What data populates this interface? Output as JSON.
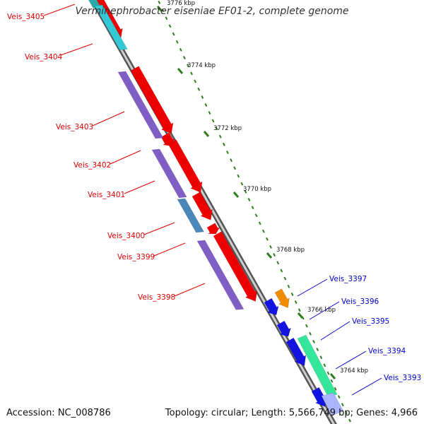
{
  "title": "Verminephrobacter eiseniae EF01-2, complete genome",
  "footer": {
    "accession": "Accession: NC_008786",
    "summary": "Topology: circular; Length: 5,566,749 bp; Genes: 4,966"
  },
  "colors": {
    "backbone": "#8a8a8a",
    "forward_label": "#dd0000",
    "reverse_label": "#0000cc",
    "tick": "#2e7d1e"
  },
  "ruler": {
    "unit": "kbp",
    "ticks": [
      {
        "label": "3776 kbp"
      },
      {
        "label": "3774 kbp"
      },
      {
        "label": "3772 kbp"
      },
      {
        "label": "3770 kbp"
      },
      {
        "label": "3768 kbp"
      },
      {
        "label": "3766 kbp"
      },
      {
        "label": "3764 kbp"
      }
    ]
  },
  "features": [
    {
      "name": "Veis_3405",
      "strand": "left",
      "color": "#2aa7a7"
    },
    {
      "name": "Veis_3404",
      "strand": "left",
      "color": "#33c9d4"
    },
    {
      "name": "Veis_3403",
      "strand": "left",
      "color": "#7f5fc6"
    },
    {
      "name": "Veis_3402",
      "strand": "left",
      "color": "#7f5fc6"
    },
    {
      "name": "Veis_3401",
      "strand": "left",
      "color": "#7f5fc6"
    },
    {
      "name": "Veis_3400",
      "strand": "left",
      "color": "#4a86b8"
    },
    {
      "name": "Veis_3399",
      "strand": "left",
      "color": "#7f5fc6"
    },
    {
      "name": "Veis_3398",
      "strand": "left",
      "color": "#7f5fc6"
    },
    {
      "name": "Veis_3397",
      "strand": "right",
      "color": "#f08c00"
    },
    {
      "name": "Veis_3396",
      "strand": "right",
      "color": "#1414e0"
    },
    {
      "name": "Veis_3395",
      "strand": "right",
      "color": "#1414e0"
    },
    {
      "name": "Veis_3394",
      "strand": "right",
      "color": "#33e699"
    },
    {
      "name": "Veis_3393",
      "strand": "right",
      "color": "#aab4ff"
    }
  ]
}
